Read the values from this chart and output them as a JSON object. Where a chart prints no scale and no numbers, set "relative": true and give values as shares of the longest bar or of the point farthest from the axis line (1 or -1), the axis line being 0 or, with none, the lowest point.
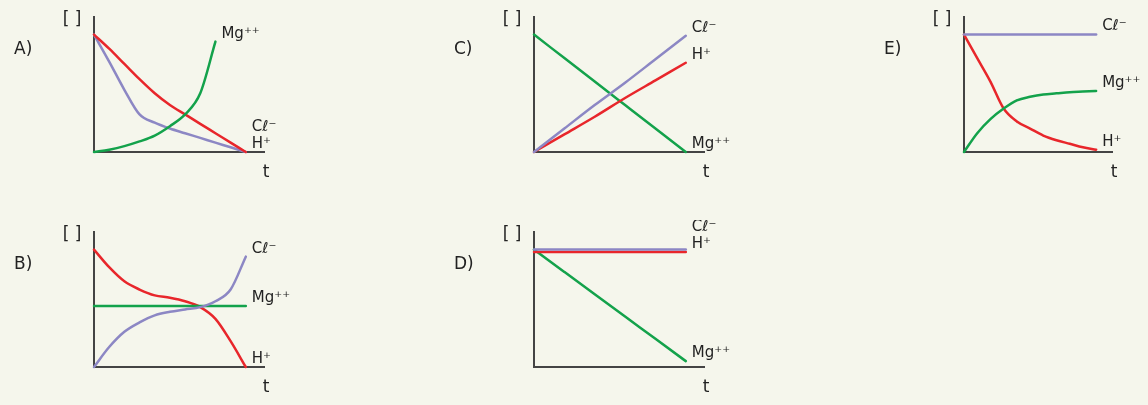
{
  "chart_data": [
    {
      "type": "line",
      "title": "A)",
      "ylabel": "[ ]",
      "xlabel": "t",
      "relative": true,
      "marker": "none",
      "categories": [
        null,
        null,
        null,
        null,
        null,
        null,
        null,
        null,
        null,
        null,
        null
      ],
      "series": [
        {
          "name": "Mg⁺⁺",
          "color": "#13a24b",
          "values": [
            0,
            0.02,
            0.05,
            0.09,
            0.14,
            0.22,
            0.32,
            0.5,
            0.94,
            null,
            null
          ]
        },
        {
          "name": "H⁺",
          "color": "#e8262b",
          "values": [
            1,
            0.88,
            0.75,
            0.62,
            0.5,
            0.4,
            0.32,
            0.24,
            0.16,
            0.08,
            0
          ]
        },
        {
          "name": "Cℓ⁻",
          "color": "#8c87c4",
          "values": [
            1,
            0.77,
            0.53,
            0.32,
            0.25,
            0.2,
            0.16,
            0.12,
            0.08,
            0.04,
            0
          ]
        }
      ]
    },
    {
      "type": "line",
      "title": "C)",
      "ylabel": "[ ]",
      "xlabel": "t",
      "relative": true,
      "marker": "none",
      "categories": [
        null,
        null,
        null,
        null,
        null,
        null
      ],
      "series": [
        {
          "name": "Cℓ⁻",
          "color": "#8c87c4",
          "values": [
            0,
            0.2,
            0.4,
            0.59,
            0.79,
            0.99
          ]
        },
        {
          "name": "H⁺",
          "color": "#e8262b",
          "values": [
            0,
            0.15,
            0.3,
            0.46,
            0.61,
            0.76
          ]
        },
        {
          "name": "Mg⁺⁺",
          "color": "#13a24b",
          "values": [
            1,
            0.8,
            0.6,
            0.4,
            0.2,
            0
          ]
        }
      ]
    },
    {
      "type": "line",
      "title": "E)",
      "ylabel": "[ ]",
      "xlabel": "t",
      "relative": true,
      "marker": "none",
      "categories": [
        null,
        null,
        null,
        null,
        null,
        null,
        null,
        null,
        null,
        null,
        null
      ],
      "series": [
        {
          "name": "Cℓ⁻",
          "color": "#8c87c4",
          "values": [
            1,
            1,
            1,
            1,
            1,
            1,
            1,
            1,
            1,
            1,
            1
          ]
        },
        {
          "name": "Mg⁺⁺",
          "color": "#13a24b",
          "values": [
            0,
            0.16,
            0.28,
            0.37,
            0.44,
            0.47,
            0.49,
            0.5,
            0.51,
            0.515,
            0.52
          ]
        },
        {
          "name": "H⁺",
          "color": "#e8262b",
          "values": [
            1,
            0.8,
            0.6,
            0.37,
            0.26,
            0.2,
            0.14,
            0.1,
            0.07,
            0.04,
            0.02
          ]
        }
      ]
    },
    {
      "type": "line",
      "title": "B)",
      "ylabel": "[ ]",
      "xlabel": "t",
      "relative": true,
      "marker": "none",
      "categories": [
        null,
        null,
        null,
        null,
        null,
        null,
        null,
        null,
        null,
        null,
        null
      ],
      "series": [
        {
          "name": "Cℓ⁻",
          "color": "#8c87c4",
          "values": [
            0,
            0.17,
            0.3,
            0.38,
            0.44,
            0.47,
            0.49,
            0.51,
            0.56,
            0.66,
            0.94
          ]
        },
        {
          "name": "Mg⁺⁺",
          "color": "#13a24b",
          "values": [
            0.52,
            0.52,
            0.52,
            0.52,
            0.52,
            0.52,
            0.52,
            0.52,
            0.52,
            0.52,
            0.52
          ]
        },
        {
          "name": "H⁺",
          "color": "#e8262b",
          "values": [
            1,
            0.85,
            0.73,
            0.66,
            0.61,
            0.59,
            0.56,
            0.51,
            0.41,
            0.22,
            0
          ]
        }
      ]
    },
    {
      "type": "line",
      "title": "D)",
      "ylabel": "[ ]",
      "xlabel": "t",
      "relative": true,
      "marker": "none",
      "categories": [
        null,
        null,
        null,
        null,
        null,
        null
      ],
      "series": [
        {
          "name": "Cℓ⁻",
          "color": "#8c87c4",
          "values": [
            1,
            1,
            1,
            1,
            1,
            1
          ]
        },
        {
          "name": "H⁺",
          "color": "#e8262b",
          "values": [
            0.98,
            0.98,
            0.98,
            0.98,
            0.98,
            0.98
          ]
        },
        {
          "name": "Mg⁺⁺",
          "color": "#13a24b",
          "values": [
            1,
            0.81,
            0.62,
            0.43,
            0.24,
            0.05
          ]
        }
      ]
    }
  ]
}
